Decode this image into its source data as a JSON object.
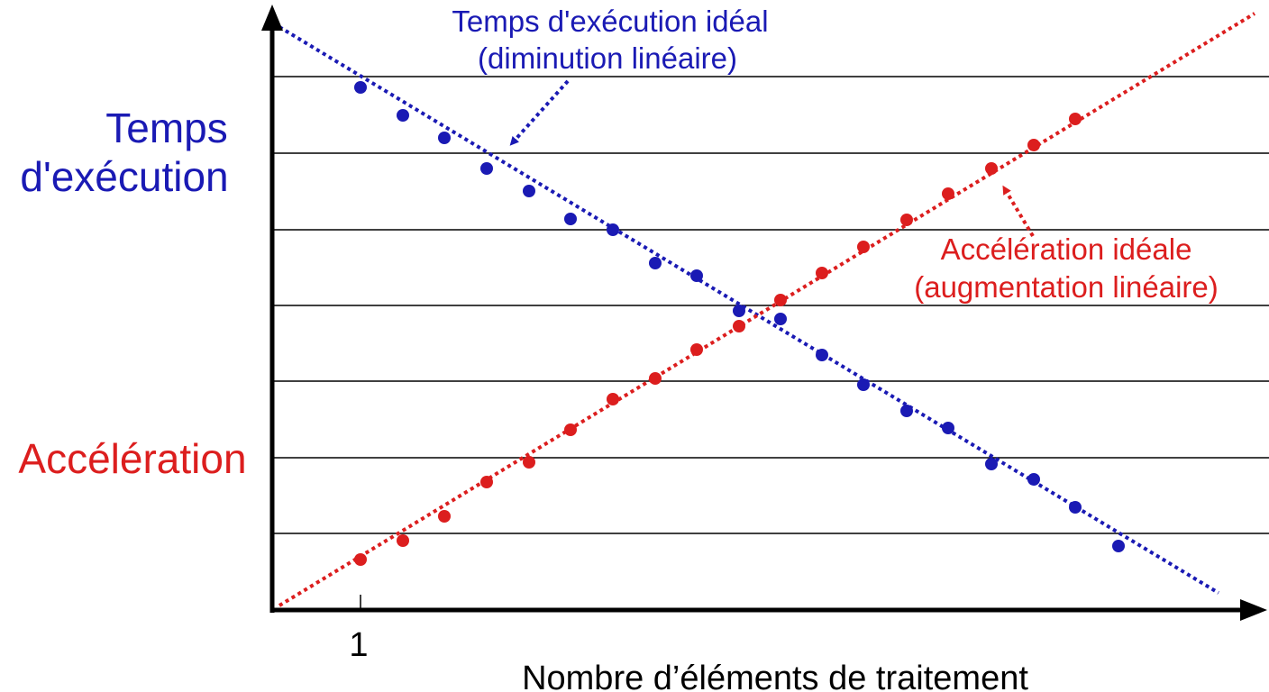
{
  "y_labels": {
    "time": [
      "Temps",
      "d'exécution"
    ],
    "speedup": "Accélération"
  },
  "annotations": {
    "ideal_time": [
      "Temps d'exécution idéal",
      "(diminution linéaire)"
    ],
    "ideal_speedup": [
      "Accélération idéale",
      "(augmentation linéaire)"
    ]
  },
  "x_axis": {
    "tick": "1",
    "label": "Nombre d’éléments de traitement"
  }
}
